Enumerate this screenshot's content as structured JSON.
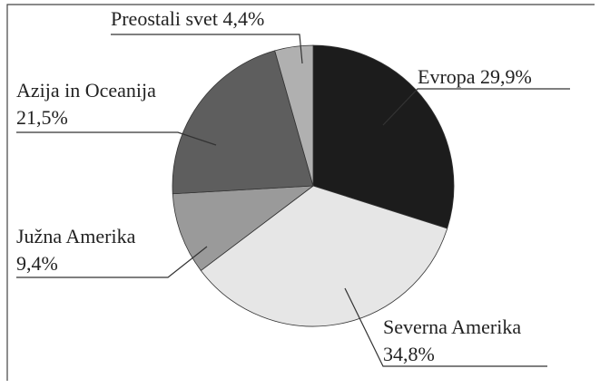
{
  "chart_data": {
    "type": "pie",
    "categories": [
      "Evropa",
      "Severna Amerika",
      "Južna Amerika",
      "Azija in Oceanija",
      "Preostali svet"
    ],
    "values": [
      29.9,
      34.8,
      9.4,
      21.5,
      4.4
    ],
    "value_labels": [
      "29,9%",
      "34,8%",
      "9,4%",
      "21,5%",
      "4,4%"
    ],
    "colors": [
      "#1c1c1c",
      "#e6e6e6",
      "#9a9a9a",
      "#5e5e5e",
      "#b0b0b0"
    ]
  }
}
